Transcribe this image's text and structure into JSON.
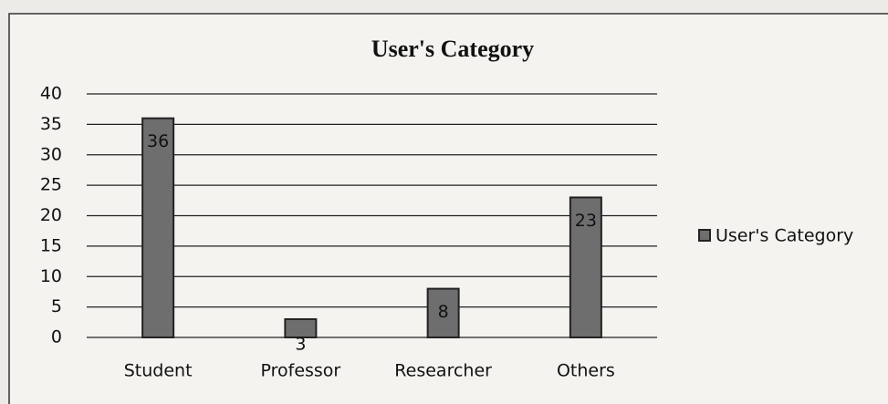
{
  "chart_data": {
    "type": "bar",
    "title": "User's Category",
    "categories": [
      "Student",
      "Professor",
      "Researcher",
      "Others"
    ],
    "series": [
      {
        "name": "User's Category",
        "color": "#6e6e6e",
        "values": [
          36,
          3,
          8,
          23
        ]
      }
    ],
    "ylim": [
      0,
      40
    ],
    "yticks": [
      0,
      5,
      10,
      15,
      20,
      25,
      30,
      35,
      40
    ],
    "grid": true,
    "legend": "right"
  }
}
